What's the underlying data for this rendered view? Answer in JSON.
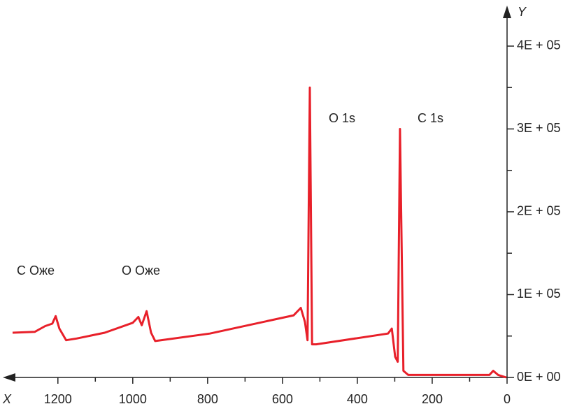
{
  "chart_data": {
    "type": "line",
    "x_label": "X",
    "y_label": "Y",
    "annotations": [
      "C Оже",
      "O Оже",
      "O 1s",
      "C 1s"
    ],
    "x": [
      1321,
      1262,
      1234,
      1215,
      1206,
      1196,
      1178,
      1150,
      1075,
      1000,
      985,
      976,
      963,
      951,
      940,
      794,
      570,
      551,
      540,
      533,
      527,
      521,
      510,
      318,
      308,
      299,
      292,
      286,
      277,
      264,
      47,
      37,
      24,
      2
    ],
    "series": [
      {
        "color": "#e8202a",
        "values": [
          54000,
          55000,
          62000,
          65000,
          74000,
          59000,
          45000,
          47000,
          54000,
          66000,
          73000,
          63000,
          80000,
          54000,
          44000,
          53000,
          75000,
          84000,
          67000,
          45000,
          350000,
          40000,
          40000,
          53000,
          59000,
          25000,
          19000,
          300000,
          8000,
          3000,
          3000,
          8000,
          3000,
          0
        ]
      }
    ],
    "xlim": [
      1336,
      0
    ],
    "xticks": [
      1200,
      1000,
      800,
      600,
      400,
      200,
      0
    ],
    "ylim": [
      0,
      443000
    ],
    "yticks": [
      {
        "value": 0,
        "label": "0E + 00"
      },
      {
        "value": 100000,
        "label": "1E + 05"
      },
      {
        "value": 200000,
        "label": "2E + 05"
      },
      {
        "value": 300000,
        "label": "3E + 05"
      },
      {
        "value": 400000,
        "label": "4E + 05"
      }
    ]
  }
}
